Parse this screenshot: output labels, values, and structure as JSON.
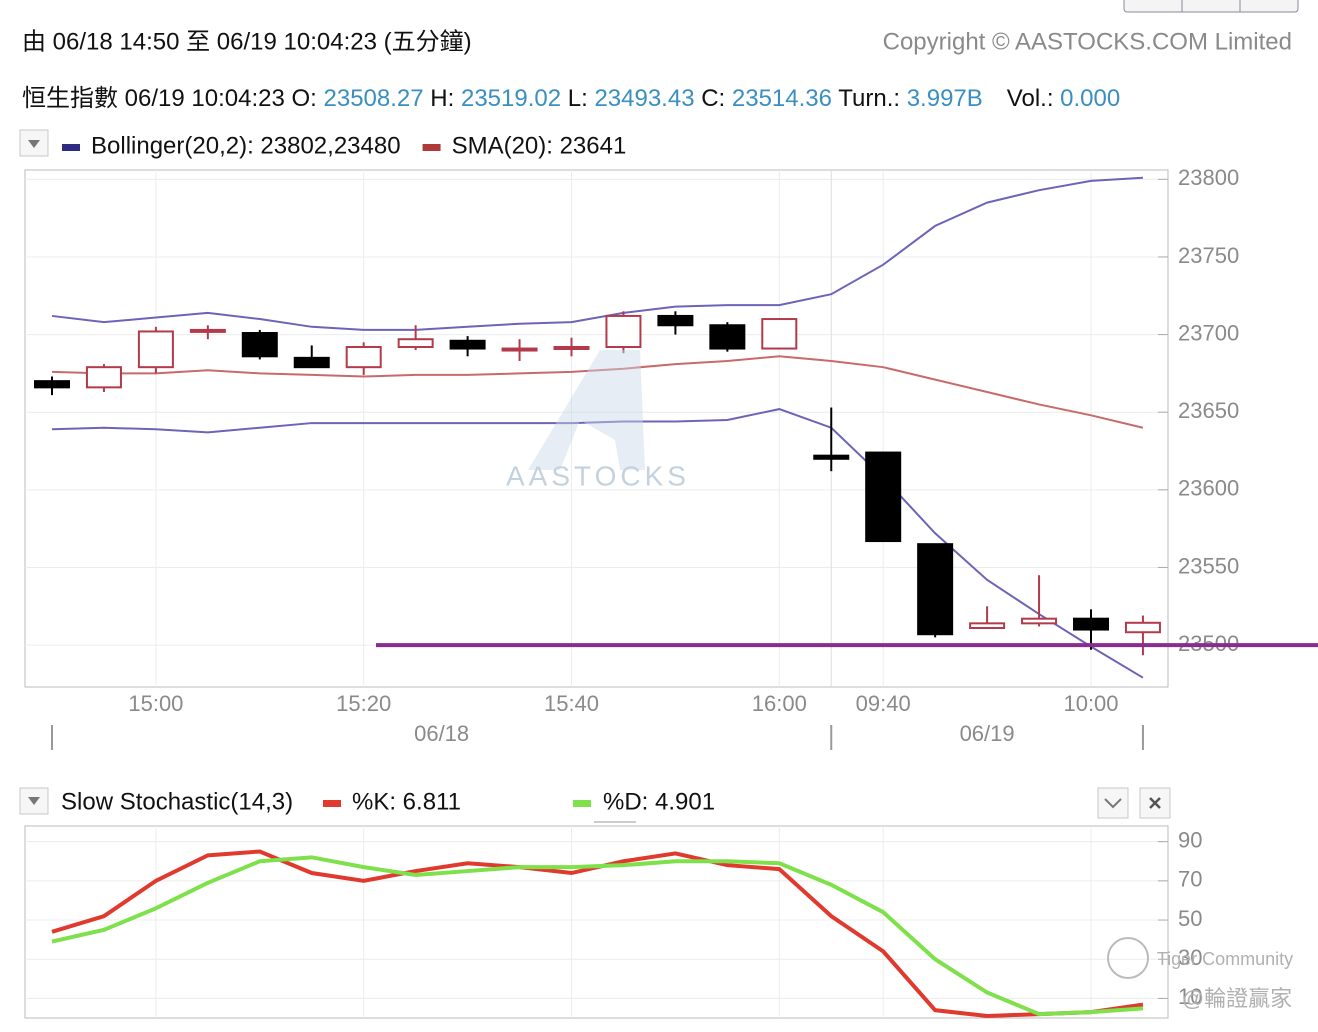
{
  "header": {
    "range": "由  06/18 14:50 至  06/19 10:04:23 (五分鐘)",
    "copyright": "Copyright © AASTOCKS.COM Limited",
    "quote": {
      "name": "恒生指數",
      "time": "06/19 10:04:23",
      "fields": [
        {
          "label": "O:",
          "value": "23508.27"
        },
        {
          "label": "H:",
          "value": "23519.02"
        },
        {
          "label": "L:",
          "value": "23493.43"
        },
        {
          "label": "C:",
          "value": "23514.36"
        },
        {
          "label": "Turn.:",
          "value": "3.997B"
        },
        {
          "label": "Vol.:",
          "value": "0.000"
        }
      ]
    }
  },
  "watermarks": [
    "Tiger Community",
    "@輪證贏家"
  ],
  "chart_data": [
    {
      "type": "candlestick",
      "watermark": "AASTOCKS",
      "categories": [
        null,
        null,
        "15:00",
        null,
        null,
        null,
        "15:20",
        null,
        null,
        null,
        "15:40",
        null,
        null,
        null,
        "16:00",
        null,
        "09:40",
        null,
        null,
        null,
        "10:00",
        null
      ],
      "groups": [
        "06/18",
        "06/19"
      ],
      "open": [
        23670,
        23666,
        23679,
        23702,
        23701,
        23685,
        23679,
        23692,
        23696,
        23690,
        23691,
        23692,
        23712,
        23706,
        23691,
        23622,
        23624,
        23565,
        23511,
        23514,
        23517,
        23508.27
      ],
      "high": [
        23673,
        23681,
        23705,
        23706,
        23703,
        23693,
        23695,
        23706,
        23699,
        23697,
        23698,
        23715,
        23715,
        23708,
        23710,
        23653,
        23624,
        23565,
        23525,
        23545,
        23523,
        23519.02
      ],
      "low": [
        23661,
        23663,
        23675,
        23697,
        23684,
        23679,
        23674,
        23690,
        23686,
        23683,
        23686,
        23688,
        23700,
        23689,
        23691,
        23612,
        23567,
        23505,
        23511,
        23512,
        23497,
        23493.43
      ],
      "close": [
        23666,
        23679,
        23702,
        23703,
        23686,
        23679,
        23692,
        23697,
        23691,
        23691,
        23692,
        23712,
        23706,
        23691,
        23710,
        23620,
        23567,
        23507,
        23514,
        23517,
        23510,
        23514.36
      ],
      "up_color": "#b23a4a",
      "down_color": "#000000",
      "series": [
        {
          "name": "Bollinger(20,2): 23802,23480",
          "color": "#2e2b80",
          "line_color": "#6c64b8",
          "upper": [
            23712,
            23708,
            23711,
            23714,
            23710,
            23705,
            23703,
            23703,
            23705,
            23707,
            23708,
            23714,
            23718,
            23719,
            23719,
            23726,
            23745,
            23770,
            23785,
            23793,
            23799,
            23801
          ],
          "lower": [
            23639,
            23640,
            23639,
            23637,
            23640,
            23643,
            23643,
            23643,
            23643,
            23643,
            23643,
            23644,
            23644,
            23645,
            23652,
            23640,
            23608,
            23572,
            23542,
            23520,
            23499,
            23479
          ]
        },
        {
          "name": "SMA(20): 23641",
          "color": "#b03a3a",
          "line_color": "#c86a6a",
          "values": [
            23676,
            23675,
            23675,
            23677,
            23675,
            23674,
            23673,
            23674,
            23674,
            23675,
            23676,
            23678,
            23681,
            23683,
            23686,
            23683,
            23679,
            23671,
            23663,
            23655,
            23648,
            23640
          ]
        }
      ],
      "hline": {
        "value": 23500,
        "color": "#8b2a8f"
      },
      "ylim": [
        23473,
        23806
      ],
      "yticks": [
        23500,
        23550,
        23600,
        23650,
        23700,
        23750,
        23800
      ],
      "grid": true
    },
    {
      "type": "line",
      "title": "Slow Stochastic(14,3)",
      "series": [
        {
          "name": "%K: 6.811",
          "color": "#e03a2e",
          "values": [
            44,
            52,
            70,
            83,
            85,
            74,
            70,
            75,
            79,
            77,
            74,
            80,
            84,
            78,
            76,
            52,
            34,
            4,
            1,
            2,
            3,
            6.811
          ]
        },
        {
          "name": "%D: 4.901",
          "color": "#7ee04a",
          "values": [
            39,
            45,
            56,
            69,
            80,
            82,
            77,
            73,
            75,
            77,
            77,
            78,
            80,
            80,
            79,
            68,
            54,
            30,
            13,
            2,
            3,
            4.901
          ]
        }
      ],
      "ylim": [
        0,
        98
      ],
      "yticks": [
        90,
        70,
        50,
        30,
        10
      ],
      "grid": true
    }
  ]
}
